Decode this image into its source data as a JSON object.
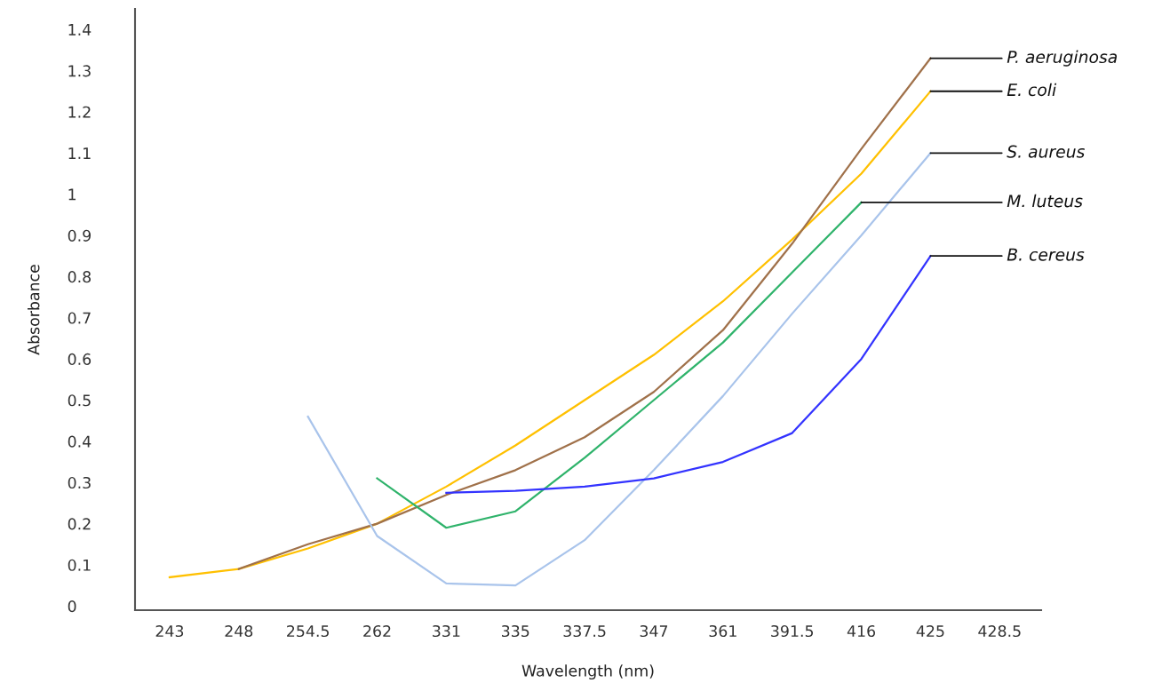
{
  "chart_data": {
    "type": "line",
    "xlabel": "Wavelength (nm)",
    "ylabel": "Absorbance",
    "categories": [
      "243",
      "248",
      "254.5",
      "262",
      "331",
      "335",
      "337.5",
      "347",
      "361",
      "391.5",
      "416",
      "425",
      "428.5"
    ],
    "ylim": [
      -0.01,
      1.45
    ],
    "yticks": [
      0,
      0.1,
      0.2,
      0.3,
      0.4,
      0.5,
      0.6,
      0.7,
      0.8,
      0.9,
      1,
      1.1,
      1.2,
      1.3,
      1.4
    ],
    "grid": false,
    "legend": false,
    "marker": "none",
    "line_style": "solid",
    "series": [
      {
        "color": "#ffc000",
        "values": [
          0.07,
          0.09,
          0.14,
          0.2,
          0.29,
          0.39,
          0.5,
          0.61,
          0.74,
          0.89,
          1.05,
          1.25,
          null
        ]
      },
      {
        "color": "#a0714a",
        "values": [
          null,
          0.09,
          0.15,
          0.2,
          0.27,
          0.33,
          0.41,
          0.52,
          0.67,
          0.88,
          1.11,
          1.33,
          null
        ]
      },
      {
        "color": "#2fb36b",
        "values": [
          null,
          null,
          null,
          0.31,
          0.19,
          0.23,
          0.36,
          0.5,
          0.64,
          0.81,
          0.98,
          null,
          null
        ]
      },
      {
        "color": "#a9c4eb",
        "values": [
          null,
          null,
          0.46,
          0.17,
          0.055,
          0.05,
          0.16,
          0.33,
          0.51,
          0.71,
          0.9,
          1.1,
          null
        ]
      },
      {
        "color": "#3333ff",
        "values": [
          null,
          null,
          null,
          null,
          0.275,
          0.28,
          0.29,
          0.31,
          0.35,
          0.42,
          0.6,
          0.85,
          null
        ]
      }
    ],
    "annotations": [
      {
        "text": "P. aeruginosa",
        "x": "425",
        "y": 1.33
      },
      {
        "text": "E. coli",
        "x": "425",
        "y": 1.25
      },
      {
        "text": "S. aureus",
        "x": "425",
        "y": 1.1
      },
      {
        "text": "M. luteus",
        "x": "416",
        "y": 0.98
      },
      {
        "text": "B. cereus",
        "x": "425",
        "y": 0.85
      }
    ]
  }
}
